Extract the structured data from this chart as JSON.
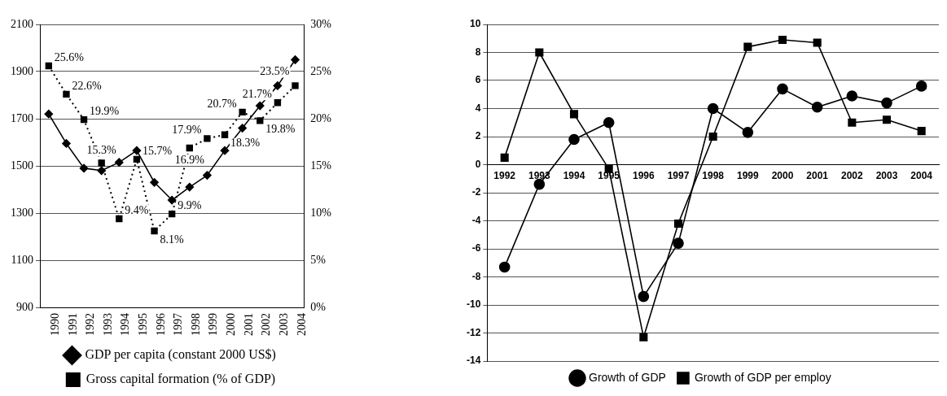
{
  "chart_data": [
    {
      "type": "line",
      "categories": [
        "1990",
        "1991",
        "1992",
        "1993",
        "1994",
        "1995",
        "1996",
        "1997",
        "1998",
        "1999",
        "2000",
        "2001",
        "2002",
        "2003",
        "2004"
      ],
      "series": [
        {
          "name": "GDP per capita (constant 2000 US$)",
          "color": "#000000",
          "marker": "diamond",
          "line_style": "solid",
          "values": [
            1720,
            1595,
            1490,
            1480,
            1515,
            1565,
            1430,
            1355,
            1410,
            1460,
            1565,
            1660,
            1755,
            1840,
            1950
          ]
        },
        {
          "name": "Gross capital formation (% of GDP)",
          "color": "#000000",
          "marker": "square",
          "line_style": "dotted",
          "axis": "y2",
          "values": [
            25.6,
            22.6,
            19.9,
            15.3,
            9.4,
            15.7,
            8.1,
            9.9,
            16.9,
            17.9,
            18.3,
            20.7,
            19.8,
            21.7,
            23.5
          ],
          "value_labels": [
            "25.6%",
            "22.6%",
            "19.9%",
            "15.3%",
            "9.4%",
            "15.7%",
            "8.1%",
            "9.9%",
            "16.9%",
            "17.9%",
            "18.3%",
            "20.7%",
            "19.8%",
            "21.7%",
            "23.5%"
          ]
        }
      ],
      "ylim": [
        900,
        2100
      ],
      "yticks": [
        900,
        1100,
        1300,
        1500,
        1700,
        1900,
        2100
      ],
      "y2lim": [
        0,
        30
      ],
      "y2ticks": [
        {
          "value": 0,
          "label": "0%"
        },
        {
          "value": 5,
          "label": "5%"
        },
        {
          "value": 10,
          "label": "10%"
        },
        {
          "value": 15,
          "label": "15%"
        },
        {
          "value": 20,
          "label": "20%"
        },
        {
          "value": 25,
          "label": "25%"
        },
        {
          "value": 30,
          "label": "30%"
        }
      ],
      "grid": "y",
      "legend": "bottom"
    },
    {
      "type": "line",
      "categories": [
        "1992",
        "1993",
        "1994",
        "1995",
        "1996",
        "1997",
        "1998",
        "1999",
        "2000",
        "2001",
        "2002",
        "2003",
        "2004"
      ],
      "series": [
        {
          "name": "Growth of GDP",
          "color": "#000000",
          "marker": "circle",
          "values": [
            -7.3,
            -1.4,
            1.8,
            3.0,
            -9.4,
            -5.6,
            4.0,
            2.3,
            5.4,
            4.1,
            4.9,
            4.4,
            5.6
          ]
        },
        {
          "name": "Growth of GDP per employ",
          "color": "#000000",
          "marker": "square",
          "values": [
            0.5,
            8.0,
            3.6,
            -0.3,
            -12.3,
            -4.2,
            2.0,
            8.4,
            8.9,
            8.7,
            3.0,
            3.2,
            2.4
          ]
        }
      ],
      "ylim": [
        -14,
        10
      ],
      "yticks": [
        -14,
        -12,
        -10,
        -8,
        -6,
        -4,
        -2,
        0,
        2,
        4,
        6,
        8,
        10
      ],
      "grid": "y",
      "legend": "bottom"
    }
  ]
}
